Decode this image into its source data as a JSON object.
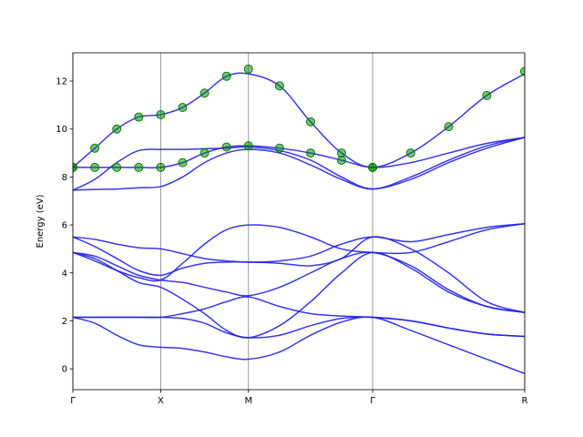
{
  "chart_data": {
    "type": "line",
    "ylabel": "Energy (eV)",
    "x": [
      0,
      0.125,
      0.25,
      0.375,
      0.5,
      0.625,
      0.75,
      0.875,
      1.0,
      1.177,
      1.354,
      1.53,
      1.707,
      1.924,
      2.14,
      2.357,
      2.573
    ],
    "xlim": [
      0,
      2.573
    ],
    "xticks": [
      {
        "value": 0,
        "label": "Γ"
      },
      {
        "value": 0.5,
        "label": "X"
      },
      {
        "value": 1.0,
        "label": "M"
      },
      {
        "value": 1.707,
        "label": "Γ"
      },
      {
        "value": 2.573,
        "label": "R"
      }
    ],
    "xgrid": true,
    "ylim": [
      -0.87,
      13.18
    ],
    "yticks": [
      0,
      2,
      4,
      6,
      8,
      10,
      12
    ],
    "series": [
      {
        "color": "#2222e6",
        "values": [
          2.15,
          1.9,
          1.4,
          1.0,
          0.9,
          0.85,
          0.7,
          0.5,
          0.4,
          0.7,
          1.4,
          1.95,
          2.15,
          1.6,
          1.0,
          0.4,
          -0.2
        ]
      },
      {
        "color": "#2222e6",
        "values": [
          2.15,
          2.15,
          2.15,
          2.15,
          2.15,
          2.1,
          1.9,
          1.5,
          1.3,
          1.4,
          1.8,
          2.1,
          2.15,
          2.0,
          1.7,
          1.45,
          1.35
        ]
      },
      {
        "color": "#2222e6",
        "values": [
          2.15,
          2.15,
          2.15,
          2.15,
          2.15,
          2.3,
          2.5,
          2.8,
          3.0,
          2.6,
          2.3,
          2.2,
          2.15,
          2.0,
          1.7,
          1.45,
          1.35
        ]
      },
      {
        "color": "#2222e6",
        "values": [
          4.85,
          4.6,
          4.1,
          3.6,
          3.4,
          2.9,
          2.3,
          1.6,
          1.3,
          1.8,
          2.8,
          4.0,
          4.85,
          4.2,
          3.2,
          2.6,
          2.35
        ]
      },
      {
        "color": "#2222e6",
        "values": [
          4.85,
          4.7,
          4.3,
          3.9,
          3.7,
          3.6,
          3.4,
          3.2,
          3.05,
          3.4,
          4.0,
          4.6,
          4.85,
          4.3,
          3.3,
          2.6,
          2.35
        ]
      },
      {
        "color": "#2222e6",
        "values": [
          5.5,
          5.1,
          4.6,
          4.1,
          3.9,
          4.2,
          4.4,
          4.45,
          4.45,
          4.4,
          4.3,
          4.6,
          5.5,
          5.0,
          4.0,
          2.8,
          2.35
        ]
      },
      {
        "color": "#2222e6",
        "values": [
          5.5,
          5.4,
          5.2,
          5.05,
          5.0,
          4.8,
          4.6,
          4.5,
          4.45,
          4.5,
          4.7,
          5.2,
          5.5,
          5.3,
          5.6,
          5.9,
          6.05
        ]
      },
      {
        "color": "#2222e6",
        "values": [
          4.85,
          4.5,
          4.1,
          3.8,
          3.7,
          4.4,
          5.2,
          5.8,
          6.0,
          5.9,
          5.5,
          5.0,
          4.85,
          4.85,
          5.3,
          5.8,
          6.05
        ]
      },
      {
        "color": "#2222e6",
        "values": [
          7.45,
          7.48,
          7.5,
          7.55,
          7.6,
          8.0,
          8.6,
          9.0,
          9.15,
          9.0,
          8.5,
          7.9,
          7.5,
          7.9,
          8.6,
          9.2,
          9.65
        ]
      },
      {
        "color": "#2222e6",
        "values": [
          7.45,
          7.9,
          8.6,
          9.1,
          9.15,
          9.15,
          9.18,
          9.2,
          9.25,
          9.1,
          8.7,
          8.0,
          7.5,
          8.0,
          8.7,
          9.3,
          9.65
        ]
      },
      {
        "color": "#2222e6",
        "values": [
          8.4,
          8.4,
          8.4,
          8.4,
          8.4,
          8.6,
          9.0,
          9.25,
          9.3,
          9.2,
          9.0,
          8.7,
          8.4,
          8.6,
          9.0,
          9.4,
          9.65
        ]
      },
      {
        "color": "#2222e6",
        "values": [
          8.4,
          9.2,
          10.0,
          10.5,
          10.6,
          10.9,
          11.5,
          12.2,
          12.3,
          11.8,
          10.3,
          9.0,
          8.4,
          9.0,
          10.1,
          11.4,
          12.3
        ]
      }
    ],
    "markers": {
      "color": "#008000",
      "x": [
        0,
        0.125,
        0.25,
        0.375,
        0.5,
        0.625,
        0.75,
        0.875,
        1.0,
        1.177,
        1.354,
        1.53,
        1.707,
        1.924,
        2.14,
        2.357,
        2.573,
        0,
        0.125,
        0.25,
        0.375,
        0.5,
        0.625,
        0.75,
        0.875,
        1.0,
        1.177,
        1.354,
        1.53,
        1.707
      ],
      "y": [
        8.4,
        9.2,
        10.0,
        10.5,
        10.6,
        10.9,
        11.5,
        12.2,
        12.5,
        11.8,
        10.3,
        9.0,
        8.4,
        9.0,
        10.1,
        11.4,
        12.4,
        8.4,
        8.4,
        8.4,
        8.4,
        8.4,
        8.6,
        9.0,
        9.25,
        9.3,
        9.2,
        9.0,
        8.7,
        8.4
      ]
    }
  }
}
